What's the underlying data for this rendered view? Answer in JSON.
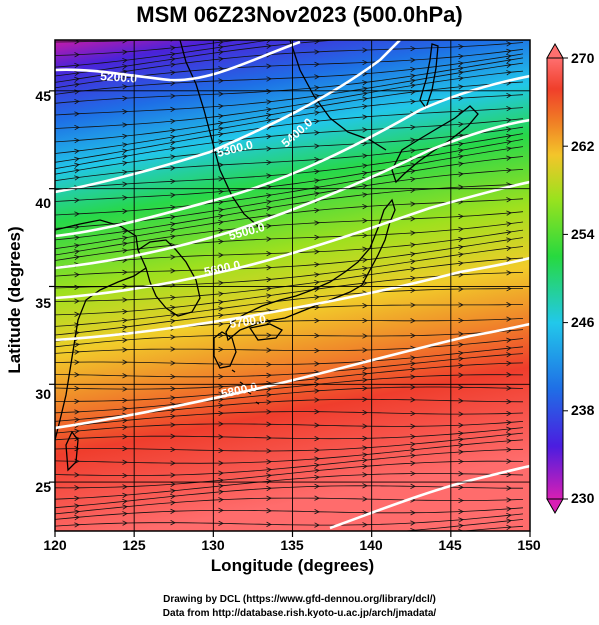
{
  "header": {
    "title": "MSM 06Z23Nov2023 (500.0hPa)"
  },
  "axes": {
    "xlabel": "Longitude (degrees)",
    "ylabel": "Latitude  (degrees)",
    "xticks": [
      "120",
      "125",
      "130",
      "135",
      "140",
      "145",
      "150"
    ],
    "yticks": [
      "45",
      "40",
      "35",
      "30",
      "25"
    ],
    "xrange": [
      120,
      150
    ],
    "yrange": [
      22.5,
      47.6
    ]
  },
  "colorbar": {
    "ticks": [
      "270",
      "262",
      "254",
      "246",
      "238",
      "230"
    ],
    "range": [
      230,
      270
    ],
    "colors": [
      "#d81fb4",
      "#4b1de0",
      "#1f6fe6",
      "#22c8ea",
      "#27d93f",
      "#9ae21e",
      "#f3c52a",
      "#f07a25",
      "#f03f2b",
      "#ff6f6f"
    ]
  },
  "contours": {
    "labels": [
      "5200.0",
      "5300.0",
      "5400.0",
      "5500.0",
      "5600.0",
      "5700.0",
      "5800.0"
    ],
    "color": "#ffffff"
  },
  "credits": {
    "line1": "Drawing by DCL (https://www.gfd-dennou.org/library/dcl/)",
    "line2": "Data from http://database.rish.kyoto-u.ac.jp/arch/jmadata/"
  }
}
